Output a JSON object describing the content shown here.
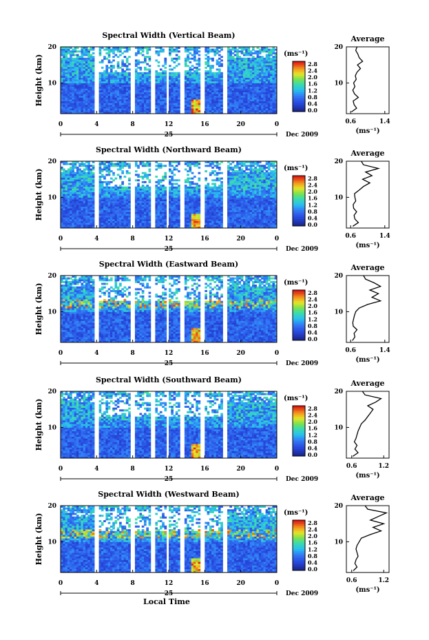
{
  "figure": {
    "xlabel": "Local Time",
    "date_label": "Dec 2009",
    "day_label": "25"
  },
  "chart_data": [
    {
      "type": "heatmap",
      "title": "Spectral Width (Vertical Beam)",
      "ylabel": "Height (km)",
      "xticks": [
        "0",
        "4",
        "8",
        "12",
        "16",
        "20",
        "0"
      ],
      "yticks": [
        "10",
        "20"
      ],
      "xlim": [
        0,
        24
      ],
      "ylim": [
        1.5,
        20
      ],
      "colorbar": {
        "unit": "(ms⁻¹)",
        "ticks": [
          "2.8",
          "2.4",
          "2.0",
          "1.6",
          "1.2",
          "0.8",
          "0.4",
          "0.0"
        ]
      },
      "profile": {
        "title": "Average",
        "xlabel": "(ms⁻¹)",
        "xticks": [
          "0.6",
          "1.4"
        ],
        "yticks": [
          "10",
          "20"
        ],
        "xlim": [
          0.5,
          1.5
        ],
        "ylim": [
          1.5,
          20
        ],
        "heights": [
          2,
          3,
          4,
          5,
          6,
          7,
          8,
          9,
          10,
          11,
          12,
          13,
          14,
          15,
          16,
          17,
          18,
          19,
          20
        ],
        "values": [
          0.62,
          0.74,
          0.68,
          0.66,
          0.78,
          0.69,
          0.65,
          0.7,
          0.67,
          0.73,
          0.71,
          0.75,
          0.83,
          0.76,
          0.88,
          0.8,
          0.77,
          0.72,
          0.75
        ]
      }
    },
    {
      "type": "heatmap",
      "title": "Spectral Width (Northward Beam)",
      "ylabel": "Height (km)",
      "xticks": [
        "0",
        "4",
        "8",
        "12",
        "16",
        "20",
        "0"
      ],
      "yticks": [
        "10",
        "20"
      ],
      "xlim": [
        0,
        24
      ],
      "ylim": [
        1.5,
        20
      ],
      "colorbar": {
        "unit": "(ms⁻¹)",
        "ticks": [
          "2.8",
          "2.4",
          "2.0",
          "1.6",
          "1.2",
          "0.8",
          "0.4",
          "0.0"
        ]
      },
      "profile": {
        "title": "Average",
        "xlabel": "(ms⁻¹)",
        "xticks": [
          "0.6",
          "1.4"
        ],
        "yticks": [
          "10",
          "20"
        ],
        "xlim": [
          0.5,
          1.5
        ],
        "ylim": [
          1.5,
          20
        ],
        "heights": [
          2,
          3,
          4,
          5,
          6,
          7,
          8,
          9,
          10,
          11,
          12,
          13,
          14,
          15,
          16,
          17,
          18,
          19,
          20
        ],
        "values": [
          0.65,
          0.78,
          0.7,
          0.68,
          0.74,
          0.67,
          0.66,
          0.72,
          0.7,
          0.69,
          0.8,
          0.9,
          1.05,
          0.88,
          1.1,
          0.95,
          1.25,
          0.9,
          0.85
        ]
      }
    },
    {
      "type": "heatmap",
      "title": "Spectral Width (Eastward Beam)",
      "ylabel": "Height (km)",
      "xticks": [
        "0",
        "4",
        "8",
        "12",
        "16",
        "20",
        "0"
      ],
      "yticks": [
        "10",
        "20"
      ],
      "xlim": [
        0,
        24
      ],
      "ylim": [
        1.5,
        20
      ],
      "colorbar": {
        "unit": "(ms⁻¹)",
        "ticks": [
          "2.8",
          "2.4",
          "2.0",
          "1.6",
          "1.2",
          "0.8",
          "0.4",
          "0.0"
        ]
      },
      "profile": {
        "title": "Average",
        "xlabel": "(ms⁻¹)",
        "xticks": [
          "0.6",
          "1.4"
        ],
        "yticks": [
          "10",
          "20"
        ],
        "xlim": [
          0.5,
          1.5
        ],
        "ylim": [
          1.5,
          20
        ],
        "heights": [
          2,
          3,
          4,
          5,
          6,
          7,
          8,
          9,
          10,
          11,
          12,
          13,
          14,
          15,
          16,
          17,
          18,
          19,
          20
        ],
        "values": [
          0.64,
          0.7,
          0.68,
          0.75,
          0.66,
          0.65,
          0.67,
          0.69,
          0.72,
          0.8,
          1.0,
          1.3,
          1.1,
          1.25,
          1.05,
          1.3,
          1.15,
          0.95,
          0.9
        ]
      }
    },
    {
      "type": "heatmap",
      "title": "Spectral Width (Southward Beam)",
      "ylabel": "Height (km)",
      "xticks": [
        "0",
        "4",
        "8",
        "12",
        "16",
        "20",
        "0"
      ],
      "yticks": [
        "10",
        "20"
      ],
      "xlim": [
        0,
        24
      ],
      "ylim": [
        1.5,
        20
      ],
      "colorbar": {
        "unit": "(ms⁻¹)",
        "ticks": [
          "2.8",
          "2.4",
          "2.0",
          "1.6",
          "1.2",
          "0.8",
          "0.4",
          "0.0"
        ]
      },
      "profile": {
        "title": "Average",
        "xlabel": "(ms⁻¹)",
        "xticks": [
          "0.6",
          "1.2"
        ],
        "yticks": [
          "10",
          "20"
        ],
        "xlim": [
          0.5,
          1.3
        ],
        "ylim": [
          1.5,
          20
        ],
        "heights": [
          2,
          3,
          4,
          5,
          6,
          7,
          8,
          9,
          10,
          11,
          12,
          13,
          14,
          15,
          16,
          17,
          18,
          19,
          20
        ],
        "values": [
          0.62,
          0.72,
          0.66,
          0.7,
          0.65,
          0.68,
          0.7,
          0.72,
          0.75,
          0.78,
          0.85,
          0.9,
          0.95,
          1.0,
          0.9,
          1.05,
          1.15,
          0.85,
          0.8
        ]
      }
    },
    {
      "type": "heatmap",
      "title": "Spectral Width (Westward Beam)",
      "ylabel": "Height (km)",
      "xticks": [
        "0",
        "4",
        "8",
        "12",
        "16",
        "20",
        "0"
      ],
      "yticks": [
        "10",
        "20"
      ],
      "xlim": [
        0,
        24
      ],
      "ylim": [
        1.5,
        20
      ],
      "colorbar": {
        "unit": "(ms⁻¹)",
        "ticks": [
          "2.8",
          "2.4",
          "2.0",
          "1.6",
          "1.2",
          "0.8",
          "0.4",
          "0.0"
        ]
      },
      "profile": {
        "title": "Average",
        "xlabel": "(ms⁻¹)",
        "xticks": [
          "0.6",
          "1.2"
        ],
        "yticks": [
          "10",
          "20"
        ],
        "xlim": [
          0.5,
          1.3
        ],
        "ylim": [
          1.5,
          20
        ],
        "heights": [
          2,
          3,
          4,
          5,
          6,
          7,
          8,
          9,
          10,
          11,
          12,
          13,
          14,
          15,
          16,
          17,
          18,
          19,
          20
        ],
        "values": [
          0.63,
          0.7,
          0.66,
          0.68,
          0.72,
          0.7,
          0.68,
          0.7,
          0.74,
          0.78,
          0.95,
          1.15,
          1.0,
          1.2,
          0.95,
          1.1,
          1.25,
          0.9,
          0.85
        ]
      }
    }
  ]
}
